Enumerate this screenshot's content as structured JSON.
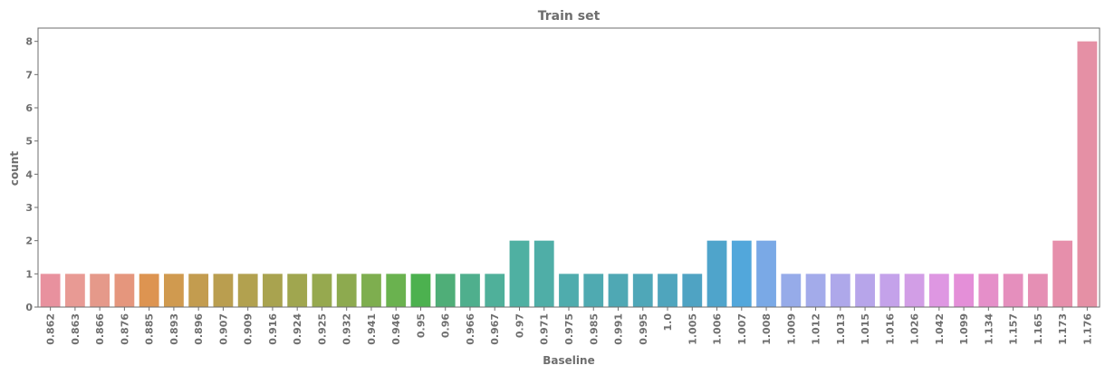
{
  "chart_data": {
    "type": "bar",
    "title": "Train set",
    "xlabel": "Baseline",
    "ylabel": "count",
    "ylim": [
      0,
      8.4
    ],
    "yticks": [
      "0",
      "1",
      "2",
      "3",
      "4",
      "5",
      "6",
      "7",
      "8"
    ],
    "grid": false,
    "categories": [
      "0.862",
      "0.863",
      "0.866",
      "0.876",
      "0.885",
      "0.893",
      "0.896",
      "0.907",
      "0.909",
      "0.916",
      "0.924",
      "0.925",
      "0.932",
      "0.941",
      "0.946",
      "0.95",
      "0.96",
      "0.966",
      "0.967",
      "0.97",
      "0.971",
      "0.975",
      "0.985",
      "0.991",
      "0.995",
      "1.0",
      "1.005",
      "1.006",
      "1.007",
      "1.008",
      "1.009",
      "1.012",
      "1.013",
      "1.015",
      "1.016",
      "1.026",
      "1.042",
      "1.099",
      "1.134",
      "1.157",
      "1.165",
      "1.173",
      "1.176"
    ],
    "values": [
      1,
      1,
      1,
      1,
      1,
      1,
      1,
      1,
      1,
      1,
      1,
      1,
      1,
      1,
      1,
      1,
      1,
      1,
      1,
      2,
      2,
      1,
      1,
      1,
      1,
      1,
      1,
      2,
      2,
      2,
      1,
      1,
      1,
      1,
      1,
      1,
      1,
      1,
      1,
      1,
      1,
      2,
      8
    ],
    "colors": [
      "#e8919e",
      "#e89a94",
      "#e5998a",
      "#e5967d",
      "#dd9451",
      "#d09a4f",
      "#c39c4f",
      "#ba9e4f",
      "#b2a14f",
      "#a9a34f",
      "#a0a64f",
      "#96a94f",
      "#8daa4f",
      "#7eae4f",
      "#6ab24f",
      "#4cb14f",
      "#4fae78",
      "#4faf8d",
      "#4fb09a",
      "#4fb0a2",
      "#4faea7",
      "#4facad",
      "#4faab1",
      "#4fa8b4",
      "#4fa7b8",
      "#4fa5bd",
      "#4fa3c3",
      "#4fa4cb",
      "#52a7db",
      "#7aa9e6",
      "#96abe9",
      "#a3abea",
      "#aea8ea",
      "#b7a5ea",
      "#c4a2ea",
      "#d29ee6",
      "#de97e2",
      "#e48fd8",
      "#e58fc9",
      "#e58fbd",
      "#e58fb4",
      "#e68fab",
      "#e590a5"
    ]
  }
}
